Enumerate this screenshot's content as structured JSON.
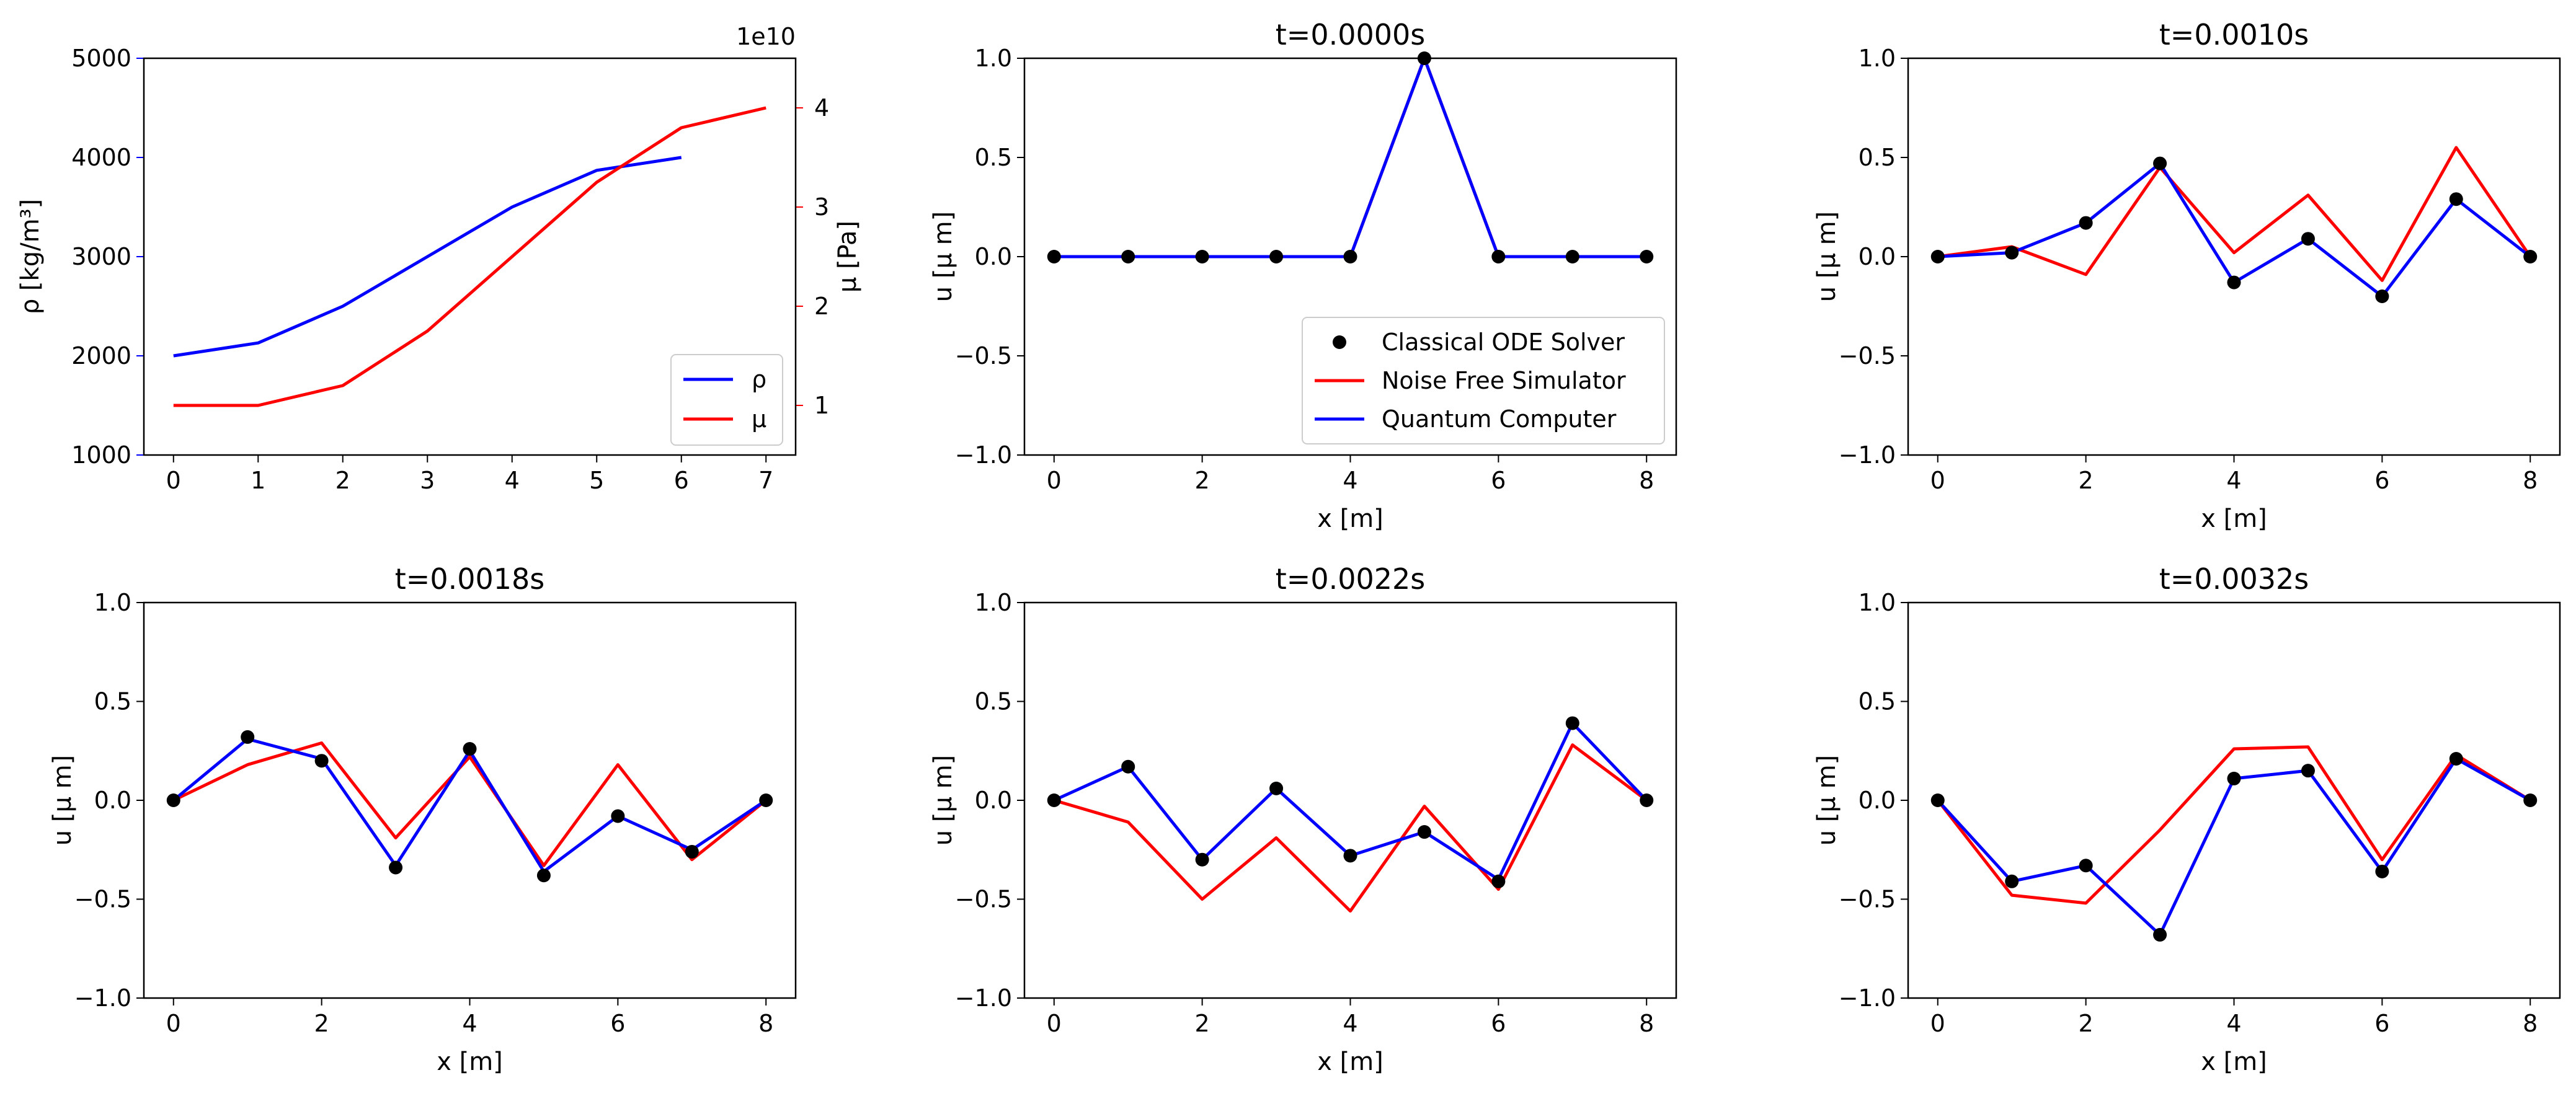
{
  "colors": {
    "blue": "#0000ff",
    "red": "#ff0000",
    "black": "#000000"
  },
  "legend_main": {
    "classical": "Classical ODE Solver",
    "noise_free": "Noise Free Simulator",
    "quantum": "Quantum Computer"
  },
  "chart_data": [
    {
      "type": "line",
      "title": "",
      "xlabel": "",
      "ylabel": "ρ [kg/m³]",
      "ylabel_right": "μ [Pa]",
      "right_axis_multiplier": "1e10",
      "xlim": [
        -0.35,
        7.35
      ],
      "xticks": [
        "0",
        "1",
        "2",
        "3",
        "4",
        "5",
        "6",
        "7"
      ],
      "ylim": [
        1000,
        5000
      ],
      "yticks": [
        "1000",
        "2000",
        "3000",
        "4000",
        "5000"
      ],
      "ylim_right": [
        0.5,
        4.5
      ],
      "yticks_right": [
        "1",
        "2",
        "3",
        "4"
      ],
      "legend": [
        "ρ",
        "μ"
      ],
      "legend_position": "lower-right",
      "series": [
        {
          "name": "ρ",
          "axis": "left",
          "color": "blue",
          "x": [
            0,
            1,
            2,
            3,
            4,
            5,
            6
          ],
          "values": [
            2000,
            2130,
            2500,
            3000,
            3500,
            3870,
            4000
          ]
        },
        {
          "name": "μ",
          "axis": "right",
          "color": "red",
          "x": [
            0,
            1,
            2,
            3,
            4,
            5,
            6,
            7
          ],
          "values": [
            1.0,
            1.0,
            1.2,
            1.75,
            2.5,
            3.25,
            3.8,
            4.0
          ]
        }
      ]
    },
    {
      "type": "line",
      "title": "t=0.0000s",
      "xlabel": "x [m]",
      "ylabel": "u [μ m]",
      "xlim": [
        -0.4,
        8.4
      ],
      "xticks": [
        "0",
        "2",
        "4",
        "6",
        "8"
      ],
      "ylim": [
        -1.0,
        1.0
      ],
      "yticks": [
        "−1.0",
        "−0.5",
        "0.0",
        "0.5",
        "1.0"
      ],
      "legend_position": "lower-right",
      "x": [
        0,
        1,
        2,
        3,
        4,
        5,
        6,
        7,
        8
      ],
      "series": [
        {
          "name": "Classical ODE Solver",
          "kind": "scatter",
          "color": "black",
          "values": [
            0,
            0,
            0,
            0,
            0,
            1,
            0,
            0,
            0
          ]
        },
        {
          "name": "Noise Free Simulator",
          "kind": "line",
          "color": "red",
          "values": [
            0,
            0,
            0,
            0,
            0,
            1,
            0,
            0,
            0
          ]
        },
        {
          "name": "Quantum Computer",
          "kind": "line",
          "color": "blue",
          "values": [
            0,
            0,
            0,
            0,
            0,
            1,
            0,
            0,
            0
          ]
        }
      ]
    },
    {
      "type": "line",
      "title": "t=0.0010s",
      "xlabel": "x [m]",
      "ylabel": "u [μ m]",
      "xlim": [
        -0.4,
        8.4
      ],
      "xticks": [
        "0",
        "2",
        "4",
        "6",
        "8"
      ],
      "ylim": [
        -1.0,
        1.0
      ],
      "yticks": [
        "−1.0",
        "−0.5",
        "0.0",
        "0.5",
        "1.0"
      ],
      "x": [
        0,
        1,
        2,
        3,
        4,
        5,
        6,
        7,
        8
      ],
      "series": [
        {
          "name": "Classical ODE Solver",
          "kind": "scatter",
          "color": "black",
          "values": [
            0,
            0.02,
            0.17,
            0.47,
            -0.13,
            0.09,
            -0.2,
            0.29,
            0
          ]
        },
        {
          "name": "Noise Free Simulator",
          "kind": "line",
          "color": "red",
          "values": [
            0,
            0.05,
            -0.09,
            0.45,
            0.02,
            0.31,
            -0.12,
            0.55,
            0
          ]
        },
        {
          "name": "Quantum Computer",
          "kind": "line",
          "color": "blue",
          "values": [
            0,
            0.02,
            0.17,
            0.47,
            -0.13,
            0.09,
            -0.2,
            0.29,
            0
          ]
        }
      ]
    },
    {
      "type": "line",
      "title": "t=0.0018s",
      "xlabel": "x [m]",
      "ylabel": "u [μ m]",
      "xlim": [
        -0.4,
        8.4
      ],
      "xticks": [
        "0",
        "2",
        "4",
        "6",
        "8"
      ],
      "ylim": [
        -1.0,
        1.0
      ],
      "yticks": [
        "−1.0",
        "−0.5",
        "0.0",
        "0.5",
        "1.0"
      ],
      "x": [
        0,
        1,
        2,
        3,
        4,
        5,
        6,
        7,
        8
      ],
      "series": [
        {
          "name": "Classical ODE Solver",
          "kind": "scatter",
          "color": "black",
          "values": [
            0,
            0.32,
            0.2,
            -0.34,
            0.26,
            -0.38,
            -0.08,
            -0.26,
            0
          ]
        },
        {
          "name": "Noise Free Simulator",
          "kind": "line",
          "color": "red",
          "values": [
            0,
            0.18,
            0.29,
            -0.19,
            0.22,
            -0.33,
            0.18,
            -0.3,
            0
          ]
        },
        {
          "name": "Quantum Computer",
          "kind": "line",
          "color": "blue",
          "values": [
            0,
            0.31,
            0.21,
            -0.33,
            0.25,
            -0.36,
            -0.08,
            -0.25,
            0
          ]
        }
      ]
    },
    {
      "type": "line",
      "title": "t=0.0022s",
      "xlabel": "x [m]",
      "ylabel": "u [μ m]",
      "xlim": [
        -0.4,
        8.4
      ],
      "xticks": [
        "0",
        "2",
        "4",
        "6",
        "8"
      ],
      "ylim": [
        -1.0,
        1.0
      ],
      "yticks": [
        "−1.0",
        "−0.5",
        "0.0",
        "0.5",
        "1.0"
      ],
      "x": [
        0,
        1,
        2,
        3,
        4,
        5,
        6,
        7,
        8
      ],
      "series": [
        {
          "name": "Classical ODE Solver",
          "kind": "scatter",
          "color": "black",
          "values": [
            0,
            0.17,
            -0.3,
            0.06,
            -0.28,
            -0.16,
            -0.41,
            0.39,
            0
          ]
        },
        {
          "name": "Noise Free Simulator",
          "kind": "line",
          "color": "red",
          "values": [
            0,
            -0.11,
            -0.5,
            -0.19,
            -0.56,
            -0.03,
            -0.45,
            0.28,
            0
          ]
        },
        {
          "name": "Quantum Computer",
          "kind": "line",
          "color": "blue",
          "values": [
            0,
            0.17,
            -0.3,
            0.06,
            -0.28,
            -0.16,
            -0.4,
            0.39,
            0
          ]
        }
      ]
    },
    {
      "type": "line",
      "title": "t=0.0032s",
      "xlabel": "x [m]",
      "ylabel": "u [μ m]",
      "xlim": [
        -0.4,
        8.4
      ],
      "xticks": [
        "0",
        "2",
        "4",
        "6",
        "8"
      ],
      "ylim": [
        -1.0,
        1.0
      ],
      "yticks": [
        "−1.0",
        "−0.5",
        "0.0",
        "0.5",
        "1.0"
      ],
      "x": [
        0,
        1,
        2,
        3,
        4,
        5,
        6,
        7,
        8
      ],
      "series": [
        {
          "name": "Classical ODE Solver",
          "kind": "scatter",
          "color": "black",
          "values": [
            0,
            -0.41,
            -0.33,
            -0.68,
            0.11,
            0.15,
            -0.36,
            0.21,
            0
          ]
        },
        {
          "name": "Noise Free Simulator",
          "kind": "line",
          "color": "red",
          "values": [
            0,
            -0.48,
            -0.52,
            -0.15,
            0.26,
            0.27,
            -0.3,
            0.23,
            0
          ]
        },
        {
          "name": "Quantum Computer",
          "kind": "line",
          "color": "blue",
          "values": [
            0,
            -0.41,
            -0.33,
            -0.68,
            0.11,
            0.15,
            -0.36,
            0.21,
            0
          ]
        }
      ]
    }
  ]
}
